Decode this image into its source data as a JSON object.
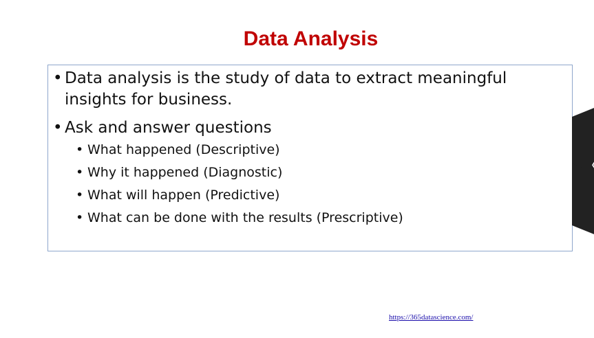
{
  "slide": {
    "title": "Data Analysis",
    "bullet_glyph": "•",
    "bullets": [
      {
        "line1": "Data analysis is the study of data to extract meaningful",
        "line2": "insights for business."
      },
      {
        "line1": "Ask and answer questions"
      }
    ],
    "sub_bullets": [
      "What happened (Descriptive)",
      "Why it happened (Diagnostic)",
      "What will happen (Predictive)",
      "What can be done with the results (Prescriptive)"
    ],
    "footer_link": "https://365datascience.com/"
  },
  "side_nav": {
    "chevron_glyph": "〈",
    "icon": "chevron-left-icon"
  },
  "colors": {
    "title": "#c00000",
    "box_border": "#8ea6cc",
    "link": "#1a0dab",
    "side_tab": "#222222"
  }
}
